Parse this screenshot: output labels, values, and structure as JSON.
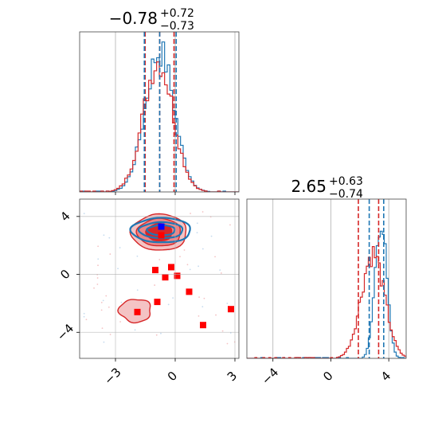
{
  "chart_data": {
    "type": "corner",
    "grid": true,
    "colors": {
      "blue": "#1f77b4",
      "red": "#d62728",
      "blue_marker": "#0000ff",
      "red_marker": "#ff0000"
    },
    "parameters": [
      {
        "index": 0,
        "median": -0.78,
        "plus": "+0.72",
        "minus": "−0.73",
        "title_main": "−0.78",
        "range": [
          -4.8,
          3.2
        ],
        "ticks": [
          -3,
          0,
          3
        ],
        "tick_labels": [
          "−3",
          "0",
          "3"
        ]
      },
      {
        "index": 1,
        "median": 2.65,
        "plus": "+0.63",
        "minus": "−0.74",
        "title_main": "2.65",
        "range": [
          -5.8,
          5.2
        ],
        "ticks": [
          -4,
          0,
          4
        ],
        "tick_labels": [
          "−4",
          "0",
          "4"
        ]
      }
    ],
    "y_ticks_2d": [
      4,
      0,
      -4
    ],
    "y_tick_labels_2d": [
      "4",
      "0",
      "−4"
    ],
    "hist1d": [
      {
        "series": [
          {
            "name": "",
            "color": "#1f77b4",
            "center": -0.78,
            "sigma": 0.73,
            "amp": 1.0
          },
          {
            "name": "",
            "color": "#d62728",
            "center": -0.85,
            "sigma": 0.75,
            "amp": 0.93
          }
        ],
        "quantile_lines": [
          {
            "x": -1.51,
            "color": "#d62728"
          },
          {
            "x": -0.78,
            "color": "#d62728"
          },
          {
            "x": -0.06,
            "color": "#d62728"
          },
          {
            "x": -1.55,
            "color": "#1f77b4"
          },
          {
            "x": -0.78,
            "color": "#1f77b4"
          },
          {
            "x": 0.05,
            "color": "#1f77b4"
          }
        ]
      },
      {
        "series": [
          {
            "name": "",
            "color": "#1f77b4",
            "center": 3.45,
            "sigma": 0.4,
            "amp": 1.0
          },
          {
            "name": "",
            "color": "#d62728",
            "center": 2.9,
            "sigma": 0.8,
            "amp": 0.75
          }
        ],
        "quantile_lines": [
          {
            "x": 1.9,
            "color": "#d62728"
          },
          {
            "x": 3.3,
            "color": "#d62728"
          },
          {
            "x": 2.65,
            "color": "#1f77b4"
          },
          {
            "x": 3.65,
            "color": "#1f77b4"
          }
        ]
      }
    ],
    "contours_2d": {
      "red_main": {
        "center": [
          -0.8,
          2.9
        ],
        "levels": [
          {
            "rx": 1.4,
            "ry": 1.25,
            "fill": "#f4c3c4"
          },
          {
            "rx": 1.1,
            "ry": 0.95,
            "fill": "#ea8688"
          },
          {
            "rx": 0.65,
            "ry": 0.6,
            "fill": "#d62728"
          }
        ]
      },
      "red_secondary": {
        "center": [
          -2.0,
          -2.5
        ],
        "rx": 0.8,
        "ry": 0.8,
        "fill": "#f4c3c4"
      },
      "blue_main": {
        "center": [
          -0.7,
          3.05
        ],
        "rings": [
          {
            "rx": 1.5,
            "ry": 0.85
          },
          {
            "rx": 1.1,
            "ry": 0.55
          },
          {
            "rx": 0.7,
            "ry": 0.35
          }
        ]
      }
    },
    "points": {
      "blue": [
        {
          "x": -0.7,
          "y": 3.3
        }
      ],
      "red": [
        {
          "x": -0.7,
          "y": 2.7
        },
        {
          "x": -1.0,
          "y": 0.3
        },
        {
          "x": -0.2,
          "y": 0.5
        },
        {
          "x": -0.5,
          "y": -0.2
        },
        {
          "x": 0.1,
          "y": -0.1
        },
        {
          "x": 0.7,
          "y": -1.2
        },
        {
          "x": -0.9,
          "y": -1.9
        },
        {
          "x": -1.9,
          "y": -2.6
        },
        {
          "x": 1.4,
          "y": -3.5
        },
        {
          "x": 2.8,
          "y": -2.4
        }
      ]
    }
  }
}
